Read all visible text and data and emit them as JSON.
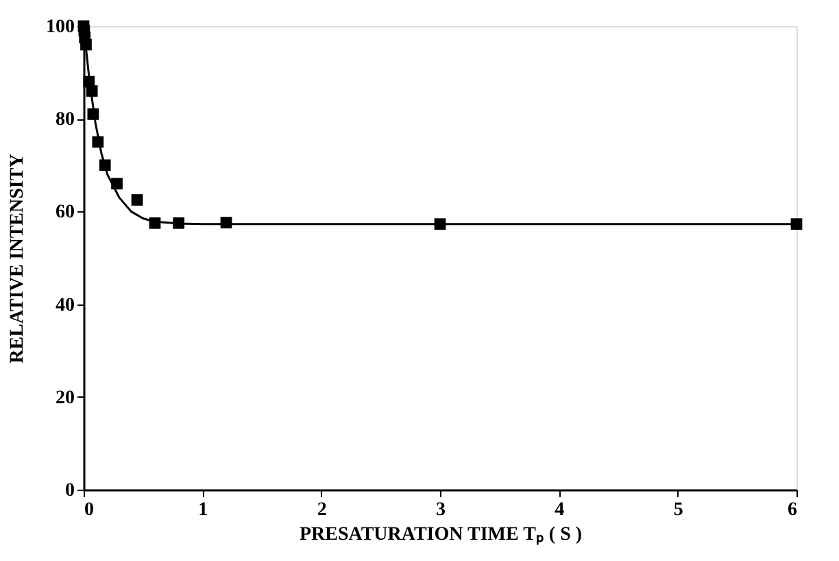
{
  "chart_data": {
    "type": "scatter",
    "xlabel": "PRESATURATION TIME Tₚ ( S )",
    "ylabel": "RELATIVE INTENSITY",
    "xlim": [
      0,
      6
    ],
    "ylim": [
      0,
      100
    ],
    "xticks": [
      0,
      1,
      2,
      3,
      4,
      5,
      6
    ],
    "yticks": [
      0,
      20,
      40,
      60,
      80,
      100
    ],
    "grid": false,
    "series": [
      {
        "marker": "square",
        "color": "#000000",
        "x": [
          0,
          0.005,
          0.01,
          0.02,
          0.045,
          0.07,
          0.08,
          0.12,
          0.18,
          0.28,
          0.45,
          0.6,
          0.8,
          1.2,
          3.0,
          6.0
        ],
        "values": [
          100,
          99,
          97.5,
          96,
          88,
          86,
          81,
          75,
          70,
          66,
          62.5,
          57.5,
          57.5,
          57.6,
          57.3,
          57.3
        ]
      },
      {
        "type": "line",
        "marker": "none",
        "line_style": "solid",
        "color": "#000000",
        "x": [
          0,
          0.05,
          0.1,
          0.15,
          0.2,
          0.3,
          0.4,
          0.5,
          0.6,
          0.8,
          1,
          2,
          6
        ],
        "values": [
          100,
          88,
          79,
          72.5,
          68,
          63,
          60,
          58.5,
          57.8,
          57.4,
          57.3,
          57.3,
          57.3
        ]
      }
    ]
  }
}
